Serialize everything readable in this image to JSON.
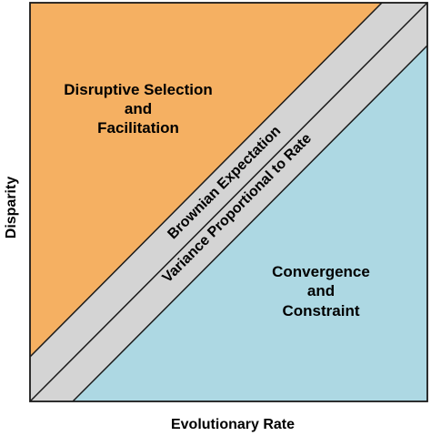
{
  "axes": {
    "x_label": "Evolutionary Rate",
    "y_label": "Disparity"
  },
  "regions": {
    "upper": {
      "line1": "Disruptive Selection",
      "line2": "and",
      "line3": "Facilitation",
      "color": "#F5B062"
    },
    "lower": {
      "line1": "Convergence",
      "line2": "and",
      "line3": "Constraint",
      "color": "#ADD8E3"
    },
    "band": {
      "label_upper": "Brownian Expectation",
      "label_lower": "Variance Proportional to Rate",
      "color": "#D4D4D4"
    }
  },
  "colors": {
    "frame": "#1a1a1a",
    "text": "#000000"
  }
}
